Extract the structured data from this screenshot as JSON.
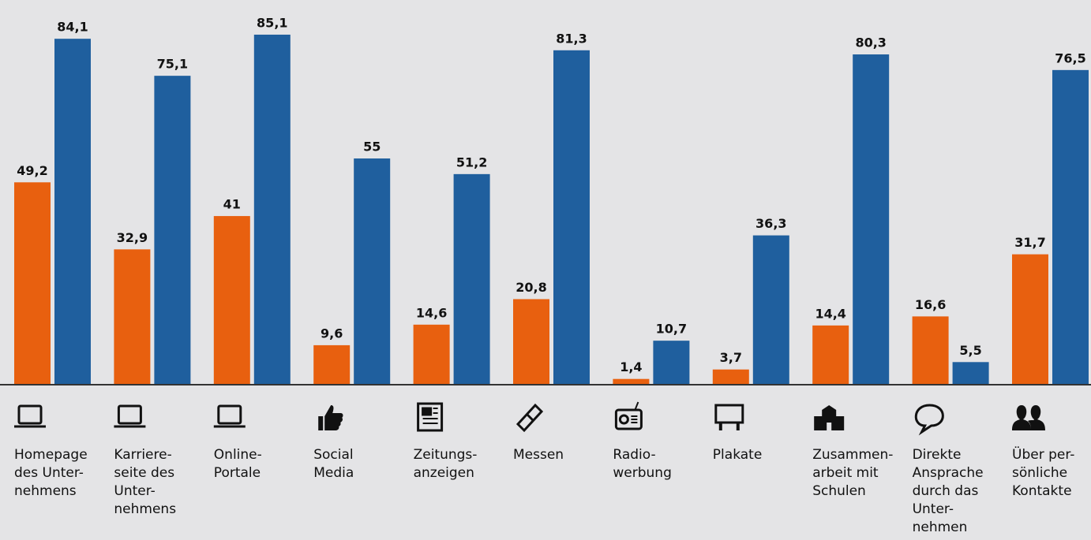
{
  "chart_data": {
    "type": "bar",
    "categories": [
      [
        "Homepage",
        "des Unter-",
        "nehmens"
      ],
      [
        "Karriere-",
        "seite des",
        "Unter-",
        "nehmens"
      ],
      [
        "Online-",
        "Portale"
      ],
      [
        "Social",
        "Media"
      ],
      [
        "Zeitungs-",
        "anzeigen"
      ],
      [
        "Messen"
      ],
      [
        "Radio-",
        "werbung"
      ],
      [
        "Plakate"
      ],
      [
        "Zusammen-",
        "arbeit mit",
        "Schulen"
      ],
      [
        "Direkte",
        "Ansprache",
        "durch das",
        "Unter-",
        "nehmen"
      ],
      [
        "Über per-",
        "sönliche",
        "Kontakte"
      ]
    ],
    "series": [
      {
        "color": "#e8600f",
        "values": [
          49.2,
          32.9,
          41,
          9.6,
          14.6,
          20.8,
          1.4,
          3.7,
          14.4,
          16.6,
          31.7
        ],
        "value_labels": [
          "49,2",
          "32,9",
          "41",
          "9,6",
          "14,6",
          "20,8",
          "1,4",
          "3,7",
          "14,4",
          "16,6",
          "31,7"
        ]
      },
      {
        "color": "#1f5f9e",
        "values": [
          84.1,
          75.1,
          85.1,
          55,
          51.2,
          81.3,
          10.7,
          36.3,
          80.3,
          5.5,
          76.5
        ],
        "value_labels": [
          "84,1",
          "75,1",
          "85,1",
          "55",
          "51,2",
          "81,3",
          "10,7",
          "36,3",
          "80,3",
          "5,5",
          "76,5"
        ]
      }
    ],
    "ylim": [
      0,
      90
    ]
  }
}
